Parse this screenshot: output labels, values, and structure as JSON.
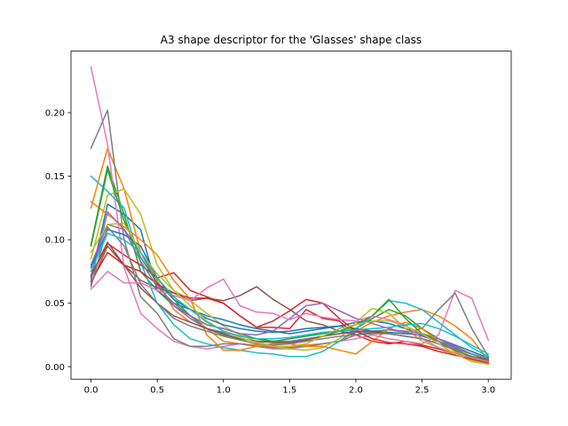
{
  "chart_data": {
    "type": "line",
    "title": "A3 shape descriptor for the 'Glasses' shape class",
    "xlabel": "",
    "ylabel": "",
    "xlim": [
      -0.151,
      3.173
    ],
    "ylim": [
      -0.0098,
      0.2485
    ],
    "grid": false,
    "legend": "none",
    "x": [
      0.0,
      0.125,
      0.25,
      0.375,
      0.5,
      0.625,
      0.75,
      0.875,
      1.0,
      1.125,
      1.25,
      1.375,
      1.5,
      1.625,
      1.75,
      1.875,
      2.0,
      2.125,
      2.25,
      2.375,
      2.5,
      2.625,
      2.75,
      2.875,
      3.0
    ],
    "xticks": [
      0.0,
      0.5,
      1.0,
      1.5,
      2.0,
      2.5,
      3.0
    ],
    "xtick_labels": [
      "0.0",
      "0.5",
      "1.0",
      "1.5",
      "2.0",
      "2.5",
      "3.0"
    ],
    "yticks": [
      0.0,
      0.05,
      0.1,
      0.15,
      0.2
    ],
    "ytick_labels": [
      "0.00",
      "0.05",
      "0.10",
      "0.15",
      "0.20"
    ],
    "series": [
      {
        "color": "#1f77b4",
        "values": [
          0.07,
          0.128,
          0.12,
          0.108,
          0.06,
          0.05,
          0.045,
          0.04,
          0.037,
          0.033,
          0.03,
          0.028,
          0.026,
          0.028,
          0.03,
          0.032,
          0.035,
          0.036,
          0.034,
          0.03,
          0.026,
          0.022,
          0.017,
          0.012,
          0.007
        ]
      },
      {
        "color": "#ff7f0e",
        "values": [
          0.125,
          0.172,
          0.14,
          0.09,
          0.068,
          0.045,
          0.035,
          0.03,
          0.02,
          0.018,
          0.017,
          0.016,
          0.015,
          0.017,
          0.018,
          0.02,
          0.028,
          0.035,
          0.04,
          0.043,
          0.045,
          0.04,
          0.032,
          0.022,
          0.005
        ]
      },
      {
        "color": "#2ca02c",
        "values": [
          0.096,
          0.158,
          0.12,
          0.075,
          0.06,
          0.048,
          0.04,
          0.03,
          0.025,
          0.022,
          0.02,
          0.02,
          0.022,
          0.024,
          0.026,
          0.028,
          0.03,
          0.038,
          0.045,
          0.04,
          0.03,
          0.022,
          0.015,
          0.01,
          0.005
        ]
      },
      {
        "color": "#d62728",
        "values": [
          0.07,
          0.097,
          0.088,
          0.08,
          0.07,
          0.074,
          0.06,
          0.055,
          0.05,
          0.04,
          0.031,
          0.031,
          0.03,
          0.045,
          0.038,
          0.036,
          0.025,
          0.02,
          0.018,
          0.02,
          0.017,
          0.014,
          0.01,
          0.008,
          0.005
        ]
      },
      {
        "color": "#9467bd",
        "values": [
          0.08,
          0.112,
          0.108,
          0.09,
          0.065,
          0.048,
          0.038,
          0.03,
          0.027,
          0.024,
          0.022,
          0.02,
          0.02,
          0.022,
          0.024,
          0.026,
          0.027,
          0.028,
          0.029,
          0.028,
          0.026,
          0.022,
          0.016,
          0.01,
          0.006
        ]
      },
      {
        "color": "#8c564b",
        "values": [
          0.065,
          0.095,
          0.08,
          0.068,
          0.062,
          0.058,
          0.052,
          0.054,
          0.052,
          0.056,
          0.063,
          0.053,
          0.045,
          0.036,
          0.033,
          0.028,
          0.025,
          0.027,
          0.026,
          0.024,
          0.022,
          0.018,
          0.013,
          0.008,
          0.005
        ]
      },
      {
        "color": "#e377c2",
        "values": [
          0.236,
          0.175,
          0.078,
          0.042,
          0.03,
          0.02,
          0.016,
          0.014,
          0.016,
          0.018,
          0.016,
          0.014,
          0.014,
          0.016,
          0.018,
          0.02,
          0.022,
          0.025,
          0.022,
          0.02,
          0.018,
          0.025,
          0.06,
          0.054,
          0.021
        ]
      },
      {
        "color": "#7f7f7f",
        "values": [
          0.172,
          0.202,
          0.1,
          0.055,
          0.042,
          0.022,
          0.016,
          0.016,
          0.018,
          0.018,
          0.016,
          0.015,
          0.015,
          0.016,
          0.018,
          0.02,
          0.025,
          0.028,
          0.029,
          0.027,
          0.03,
          0.045,
          0.058,
          0.03,
          0.008
        ]
      },
      {
        "color": "#bcbd22",
        "values": [
          0.085,
          0.135,
          0.14,
          0.12,
          0.08,
          0.06,
          0.052,
          0.042,
          0.032,
          0.025,
          0.02,
          0.016,
          0.014,
          0.013,
          0.015,
          0.022,
          0.035,
          0.046,
          0.042,
          0.03,
          0.02,
          0.015,
          0.01,
          0.005,
          0.002
        ]
      },
      {
        "color": "#17becf",
        "values": [
          0.15,
          0.138,
          0.125,
          0.082,
          0.05,
          0.033,
          0.022,
          0.018,
          0.015,
          0.013,
          0.011,
          0.01,
          0.008,
          0.008,
          0.012,
          0.02,
          0.03,
          0.04,
          0.052,
          0.05,
          0.045,
          0.035,
          0.025,
          0.015,
          0.008
        ]
      },
      {
        "color": "#1f77b4",
        "values": [
          0.078,
          0.108,
          0.104,
          0.095,
          0.07,
          0.053,
          0.045,
          0.038,
          0.033,
          0.03,
          0.028,
          0.027,
          0.028,
          0.03,
          0.031,
          0.032,
          0.03,
          0.028,
          0.027,
          0.026,
          0.025,
          0.02,
          0.015,
          0.01,
          0.006
        ]
      },
      {
        "color": "#ff7f0e",
        "values": [
          0.13,
          0.12,
          0.11,
          0.1,
          0.088,
          0.068,
          0.053,
          0.025,
          0.013,
          0.013,
          0.016,
          0.018,
          0.018,
          0.016,
          0.016,
          0.013,
          0.01,
          0.02,
          0.03,
          0.035,
          0.03,
          0.02,
          0.012,
          0.006,
          0.004
        ]
      },
      {
        "color": "#2ca02c",
        "values": [
          0.095,
          0.155,
          0.115,
          0.086,
          0.066,
          0.053,
          0.04,
          0.033,
          0.03,
          0.026,
          0.022,
          0.02,
          0.019,
          0.021,
          0.024,
          0.028,
          0.033,
          0.04,
          0.053,
          0.038,
          0.026,
          0.02,
          0.013,
          0.008,
          0.004
        ]
      },
      {
        "color": "#d62728",
        "values": [
          0.067,
          0.09,
          0.08,
          0.075,
          0.065,
          0.058,
          0.054,
          0.054,
          0.05,
          0.04,
          0.031,
          0.036,
          0.044,
          0.053,
          0.05,
          0.038,
          0.028,
          0.022,
          0.019,
          0.018,
          0.016,
          0.012,
          0.009,
          0.006,
          0.003
        ]
      },
      {
        "color": "#9467bd",
        "values": [
          0.068,
          0.122,
          0.108,
          0.083,
          0.063,
          0.05,
          0.04,
          0.033,
          0.03,
          0.026,
          0.025,
          0.028,
          0.038,
          0.048,
          0.05,
          0.044,
          0.038,
          0.034,
          0.03,
          0.027,
          0.024,
          0.02,
          0.015,
          0.01,
          0.006
        ]
      },
      {
        "color": "#8c564b",
        "values": [
          0.072,
          0.098,
          0.08,
          0.062,
          0.05,
          0.04,
          0.035,
          0.03,
          0.026,
          0.022,
          0.02,
          0.019,
          0.019,
          0.021,
          0.024,
          0.026,
          0.028,
          0.028,
          0.026,
          0.024,
          0.022,
          0.018,
          0.014,
          0.01,
          0.006
        ]
      },
      {
        "color": "#e377c2",
        "values": [
          0.061,
          0.075,
          0.066,
          0.066,
          0.06,
          0.056,
          0.052,
          0.062,
          0.069,
          0.048,
          0.043,
          0.042,
          0.037,
          0.042,
          0.039,
          0.037,
          0.036,
          0.04,
          0.037,
          0.033,
          0.022,
          0.015,
          0.011,
          0.007,
          0.004
        ]
      },
      {
        "color": "#7f7f7f",
        "values": [
          0.063,
          0.11,
          0.095,
          0.065,
          0.05,
          0.038,
          0.032,
          0.028,
          0.024,
          0.021,
          0.018,
          0.017,
          0.018,
          0.02,
          0.022,
          0.024,
          0.025,
          0.026,
          0.026,
          0.024,
          0.022,
          0.018,
          0.014,
          0.01,
          0.006
        ]
      },
      {
        "color": "#bcbd22",
        "values": [
          0.09,
          0.112,
          0.113,
          0.09,
          0.073,
          0.06,
          0.048,
          0.036,
          0.028,
          0.023,
          0.019,
          0.016,
          0.016,
          0.018,
          0.024,
          0.03,
          0.033,
          0.036,
          0.036,
          0.032,
          0.026,
          0.018,
          0.01,
          0.004,
          0.002
        ]
      },
      {
        "color": "#17becf",
        "values": [
          0.075,
          0.105,
          0.1,
          0.09,
          0.07,
          0.055,
          0.045,
          0.035,
          0.028,
          0.024,
          0.022,
          0.022,
          0.023,
          0.025,
          0.027,
          0.028,
          0.029,
          0.03,
          0.031,
          0.033,
          0.034,
          0.03,
          0.024,
          0.017,
          0.01
        ]
      }
    ]
  }
}
